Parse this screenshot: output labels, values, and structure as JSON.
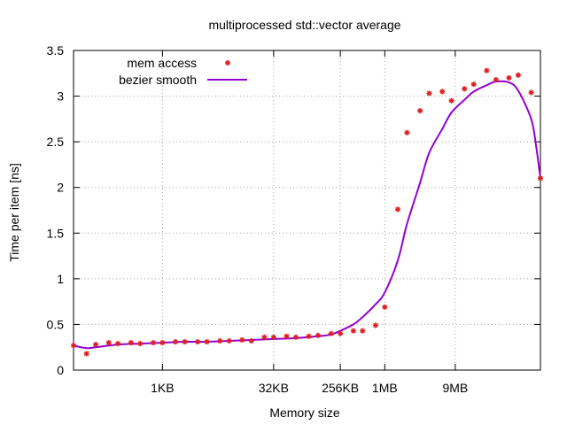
{
  "chart_data": {
    "type": "scatter",
    "title": "multiprocessed std::vector average",
    "xlabel": "Memory size",
    "ylabel": "Time per item [ns]",
    "x_scale": "log2",
    "x_unit": "bytes",
    "xlim": [
      64,
      134217728
    ],
    "ylim": [
      0,
      3.5
    ],
    "yticks": [
      {
        "value": 0,
        "label": "0"
      },
      {
        "value": 0.5,
        "label": "0.5"
      },
      {
        "value": 1,
        "label": "1"
      },
      {
        "value": 1.5,
        "label": "1.5"
      },
      {
        "value": 2,
        "label": "2"
      },
      {
        "value": 2.5,
        "label": "2.5"
      },
      {
        "value": 3,
        "label": "3"
      },
      {
        "value": 3.5,
        "label": "3.5"
      }
    ],
    "xticks": [
      {
        "value": 1024,
        "label": "1KB"
      },
      {
        "value": 32768,
        "label": "32KB"
      },
      {
        "value": 262144,
        "label": "256KB"
      },
      {
        "value": 1048576,
        "label": "1MB"
      },
      {
        "value": 9437184,
        "label": "9MB"
      }
    ],
    "grid": true,
    "legend_position": "top-left",
    "series": [
      {
        "name": "mem access",
        "style": "points",
        "color": "#e02020",
        "points": [
          [
            64,
            0.27
          ],
          [
            96,
            0.18
          ],
          [
            128,
            0.28
          ],
          [
            192,
            0.3
          ],
          [
            256,
            0.29
          ],
          [
            384,
            0.3
          ],
          [
            512,
            0.29
          ],
          [
            768,
            0.3
          ],
          [
            1024,
            0.3
          ],
          [
            1536,
            0.31
          ],
          [
            2048,
            0.31
          ],
          [
            3072,
            0.31
          ],
          [
            4096,
            0.31
          ],
          [
            6144,
            0.32
          ],
          [
            8192,
            0.32
          ],
          [
            12288,
            0.33
          ],
          [
            16384,
            0.32
          ],
          [
            24576,
            0.36
          ],
          [
            32768,
            0.36
          ],
          [
            49152,
            0.37
          ],
          [
            65536,
            0.36
          ],
          [
            98304,
            0.37
          ],
          [
            131072,
            0.38
          ],
          [
            196608,
            0.4
          ],
          [
            262144,
            0.4
          ],
          [
            393216,
            0.43
          ],
          [
            524288,
            0.43
          ],
          [
            786432,
            0.49
          ],
          [
            1048576,
            0.69
          ],
          [
            1572864,
            1.76
          ],
          [
            2097152,
            2.6
          ],
          [
            3145728,
            2.84
          ],
          [
            4194304,
            3.03
          ],
          [
            6291456,
            3.05
          ],
          [
            8388608,
            2.95
          ],
          [
            12582912,
            3.08
          ],
          [
            16777216,
            3.13
          ],
          [
            25165824,
            3.28
          ],
          [
            33554432,
            3.18
          ],
          [
            50331648,
            3.2
          ],
          [
            67108864,
            3.23
          ],
          [
            100663296,
            3.04
          ],
          [
            134217728,
            2.1
          ]
        ]
      },
      {
        "name": "bezier smooth",
        "style": "line",
        "color": "#9400d3",
        "points": [
          [
            64,
            0.27
          ],
          [
            96,
            0.24
          ],
          [
            128,
            0.25
          ],
          [
            256,
            0.28
          ],
          [
            512,
            0.29
          ],
          [
            1024,
            0.3
          ],
          [
            2048,
            0.31
          ],
          [
            4096,
            0.31
          ],
          [
            8192,
            0.32
          ],
          [
            16384,
            0.33
          ],
          [
            32768,
            0.34
          ],
          [
            65536,
            0.35
          ],
          [
            131072,
            0.37
          ],
          [
            196608,
            0.39
          ],
          [
            262144,
            0.43
          ],
          [
            393216,
            0.5
          ],
          [
            524288,
            0.58
          ],
          [
            786432,
            0.72
          ],
          [
            1048576,
            0.85
          ],
          [
            1572864,
            1.2
          ],
          [
            2097152,
            1.6
          ],
          [
            3145728,
            2.05
          ],
          [
            4194304,
            2.38
          ],
          [
            6291456,
            2.64
          ],
          [
            8388608,
            2.82
          ],
          [
            12582912,
            2.96
          ],
          [
            16777216,
            3.05
          ],
          [
            25165824,
            3.12
          ],
          [
            33554432,
            3.16
          ],
          [
            50331648,
            3.15
          ],
          [
            67108864,
            3.06
          ],
          [
            100663296,
            2.75
          ],
          [
            117440512,
            2.45
          ],
          [
            134217728,
            2.1
          ]
        ]
      }
    ]
  }
}
